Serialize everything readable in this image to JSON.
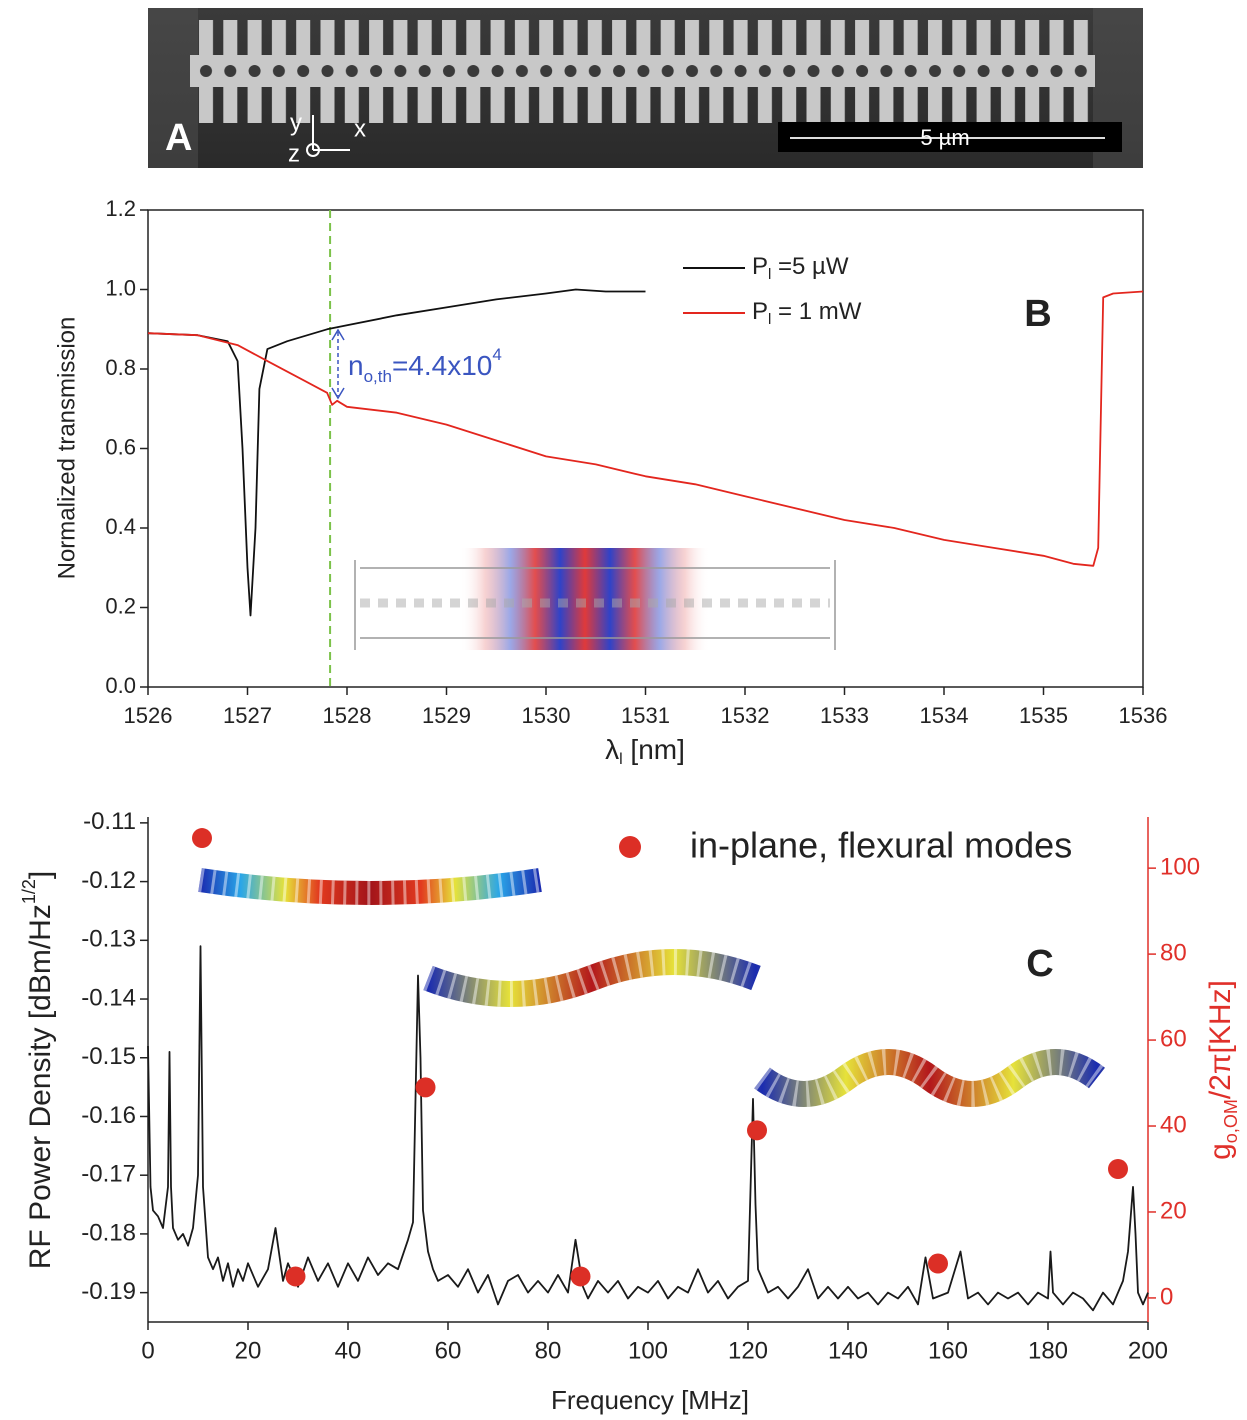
{
  "image_panel": {
    "label": "A",
    "axis_y": "y",
    "axis_x": "x",
    "axis_z": "z",
    "scale_bar": "5 µm"
  },
  "chart_data": [
    {
      "type": "line",
      "panel_label": "B",
      "ylabel": "Normalized transmission",
      "xlabel": "λ",
      "xlabel_subscript": "l",
      "xlabel_suffix": " [nm]",
      "xlim": [
        1526,
        1536
      ],
      "xticks": [
        1526,
        1527,
        1528,
        1529,
        1530,
        1531,
        1532,
        1533,
        1534,
        1535,
        1536
      ],
      "ylim": [
        0,
        1.2
      ],
      "yticks": [
        {
          "value": 0,
          "label": "0.0"
        },
        0.2,
        0.4,
        0.6,
        0.8,
        {
          "value": 1,
          "label": "1.0"
        },
        1.2
      ],
      "reference_line": 1527.83,
      "reference_color": "#7cc24a",
      "annotation": {
        "text": "n",
        "subscript": "o,th",
        "suffix": "=4.4x10",
        "superscript": "4",
        "color": "#3a55c0"
      },
      "series": [
        {
          "name": "P",
          "name_subscript": "l",
          "name_suffix": " =5 µW",
          "color": "#111111",
          "x": [
            1526,
            1526.5,
            1526.8,
            1526.9,
            1526.95,
            1527.0,
            1527.03,
            1527.08,
            1527.12,
            1527.2,
            1527.4,
            1527.8,
            1528,
            1528.5,
            1529,
            1529.5,
            1530,
            1530.3,
            1530.6,
            1531
          ],
          "values": [
            0.89,
            0.885,
            0.87,
            0.82,
            0.6,
            0.3,
            0.18,
            0.4,
            0.75,
            0.85,
            0.87,
            0.9,
            0.91,
            0.935,
            0.955,
            0.975,
            0.99,
            1.0,
            0.995,
            0.995
          ]
        },
        {
          "name": "P",
          "name_subscript": "l",
          "name_suffix": " = 1 mW",
          "color": "#e3261e",
          "x": [
            1526,
            1526.5,
            1526.9,
            1527.2,
            1527.5,
            1527.8,
            1527.85,
            1527.9,
            1528,
            1528.5,
            1529,
            1529.5,
            1530,
            1530.5,
            1531,
            1531.5,
            1532,
            1532.5,
            1533,
            1533.5,
            1534,
            1534.5,
            1535,
            1535.3,
            1535.5,
            1535.55,
            1535.6,
            1535.7,
            1536
          ],
          "values": [
            0.89,
            0.885,
            0.86,
            0.82,
            0.78,
            0.74,
            0.71,
            0.72,
            0.705,
            0.69,
            0.66,
            0.62,
            0.58,
            0.56,
            0.53,
            0.51,
            0.48,
            0.45,
            0.42,
            0.4,
            0.37,
            0.35,
            0.33,
            0.31,
            0.305,
            0.35,
            0.98,
            0.99,
            0.995
          ]
        }
      ]
    },
    {
      "type": "line",
      "panel_label": "C",
      "xlabel": "Frequency [MHz]",
      "ylabel": "RF Power Density [dBm/Hz",
      "ylabel_superscript": "1/2",
      "ylabel_suffix": "]",
      "y2label": "g",
      "y2label_subscript": "o,OM",
      "y2label_suffix": "/2π[KHz]",
      "y2color": "#e0302a",
      "xlim": [
        0,
        200
      ],
      "xticks": [
        0,
        20,
        40,
        60,
        80,
        100,
        120,
        140,
        160,
        180,
        200
      ],
      "ylim": [
        -0.195,
        -0.109
      ],
      "yticks": [
        -0.19,
        -0.18,
        -0.17,
        -0.16,
        -0.15,
        -0.14,
        -0.13,
        -0.12,
        -0.11
      ],
      "y2lim": [
        -5.6,
        111.9
      ],
      "y2ticks": [
        0,
        20,
        40,
        60,
        80,
        100
      ],
      "series": [
        {
          "color": "#1a1a1a",
          "mode": "line",
          "x": [
            0,
            0.5,
            1,
            2,
            3,
            4,
            4.3,
            4.6,
            5,
            6,
            7,
            8,
            9,
            10,
            10.5,
            11,
            12,
            13,
            14,
            15,
            16,
            17,
            18,
            19,
            20,
            22,
            24,
            25.5,
            27,
            28,
            30,
            32,
            34,
            36,
            38,
            40,
            42,
            44,
            46,
            48,
            50,
            52,
            53,
            54,
            54.5,
            55,
            56,
            57,
            58,
            60,
            62,
            64,
            66,
            68,
            70,
            72,
            74,
            76,
            78,
            80,
            82,
            84,
            85.5,
            87,
            88,
            90,
            92,
            94,
            96,
            98,
            100,
            102,
            104,
            106,
            108,
            110,
            112,
            114,
            116,
            118,
            120,
            121,
            121.5,
            122,
            123,
            124,
            126,
            128,
            130,
            132,
            134,
            136,
            138,
            140,
            142,
            144,
            146,
            148,
            150,
            152,
            154,
            155.5,
            157,
            160,
            162.5,
            164,
            166,
            168,
            170,
            172,
            174,
            176,
            178,
            180,
            180.5,
            181,
            183,
            185,
            187,
            189,
            191,
            193,
            195,
            196,
            197,
            197.5,
            198,
            199,
            200
          ],
          "values": [
            -0.148,
            -0.172,
            -0.176,
            -0.177,
            -0.179,
            -0.172,
            -0.149,
            -0.172,
            -0.179,
            -0.181,
            -0.18,
            -0.182,
            -0.179,
            -0.17,
            -0.131,
            -0.172,
            -0.184,
            -0.186,
            -0.184,
            -0.188,
            -0.185,
            -0.189,
            -0.186,
            -0.188,
            -0.185,
            -0.189,
            -0.186,
            -0.179,
            -0.188,
            -0.185,
            -0.189,
            -0.184,
            -0.188,
            -0.185,
            -0.189,
            -0.185,
            -0.188,
            -0.184,
            -0.187,
            -0.185,
            -0.186,
            -0.181,
            -0.178,
            -0.136,
            -0.15,
            -0.176,
            -0.183,
            -0.186,
            -0.188,
            -0.187,
            -0.189,
            -0.186,
            -0.19,
            -0.187,
            -0.192,
            -0.188,
            -0.187,
            -0.19,
            -0.188,
            -0.19,
            -0.187,
            -0.19,
            -0.181,
            -0.189,
            -0.191,
            -0.188,
            -0.19,
            -0.188,
            -0.191,
            -0.189,
            -0.19,
            -0.188,
            -0.191,
            -0.189,
            -0.19,
            -0.186,
            -0.19,
            -0.188,
            -0.191,
            -0.189,
            -0.188,
            -0.157,
            -0.175,
            -0.186,
            -0.188,
            -0.19,
            -0.189,
            -0.191,
            -0.189,
            -0.186,
            -0.191,
            -0.189,
            -0.191,
            -0.189,
            -0.191,
            -0.19,
            -0.192,
            -0.19,
            -0.191,
            -0.189,
            -0.192,
            -0.184,
            -0.191,
            -0.19,
            -0.183,
            -0.191,
            -0.19,
            -0.192,
            -0.19,
            -0.191,
            -0.19,
            -0.192,
            -0.19,
            -0.191,
            -0.183,
            -0.19,
            -0.192,
            -0.19,
            -0.191,
            -0.193,
            -0.19,
            -0.192,
            -0.188,
            -0.183,
            -0.172,
            -0.18,
            -0.19,
            -0.192,
            -0.19
          ]
        },
        {
          "name": "in-plane, flexural modes",
          "color": "#dc2f26",
          "mode": "markers",
          "axis": "y2",
          "x": [
            10.8,
            29.5,
            55.5,
            86.5,
            121.8,
            158,
            194
          ],
          "values": [
            107,
            5,
            49,
            5,
            39,
            8,
            30
          ]
        }
      ]
    }
  ]
}
